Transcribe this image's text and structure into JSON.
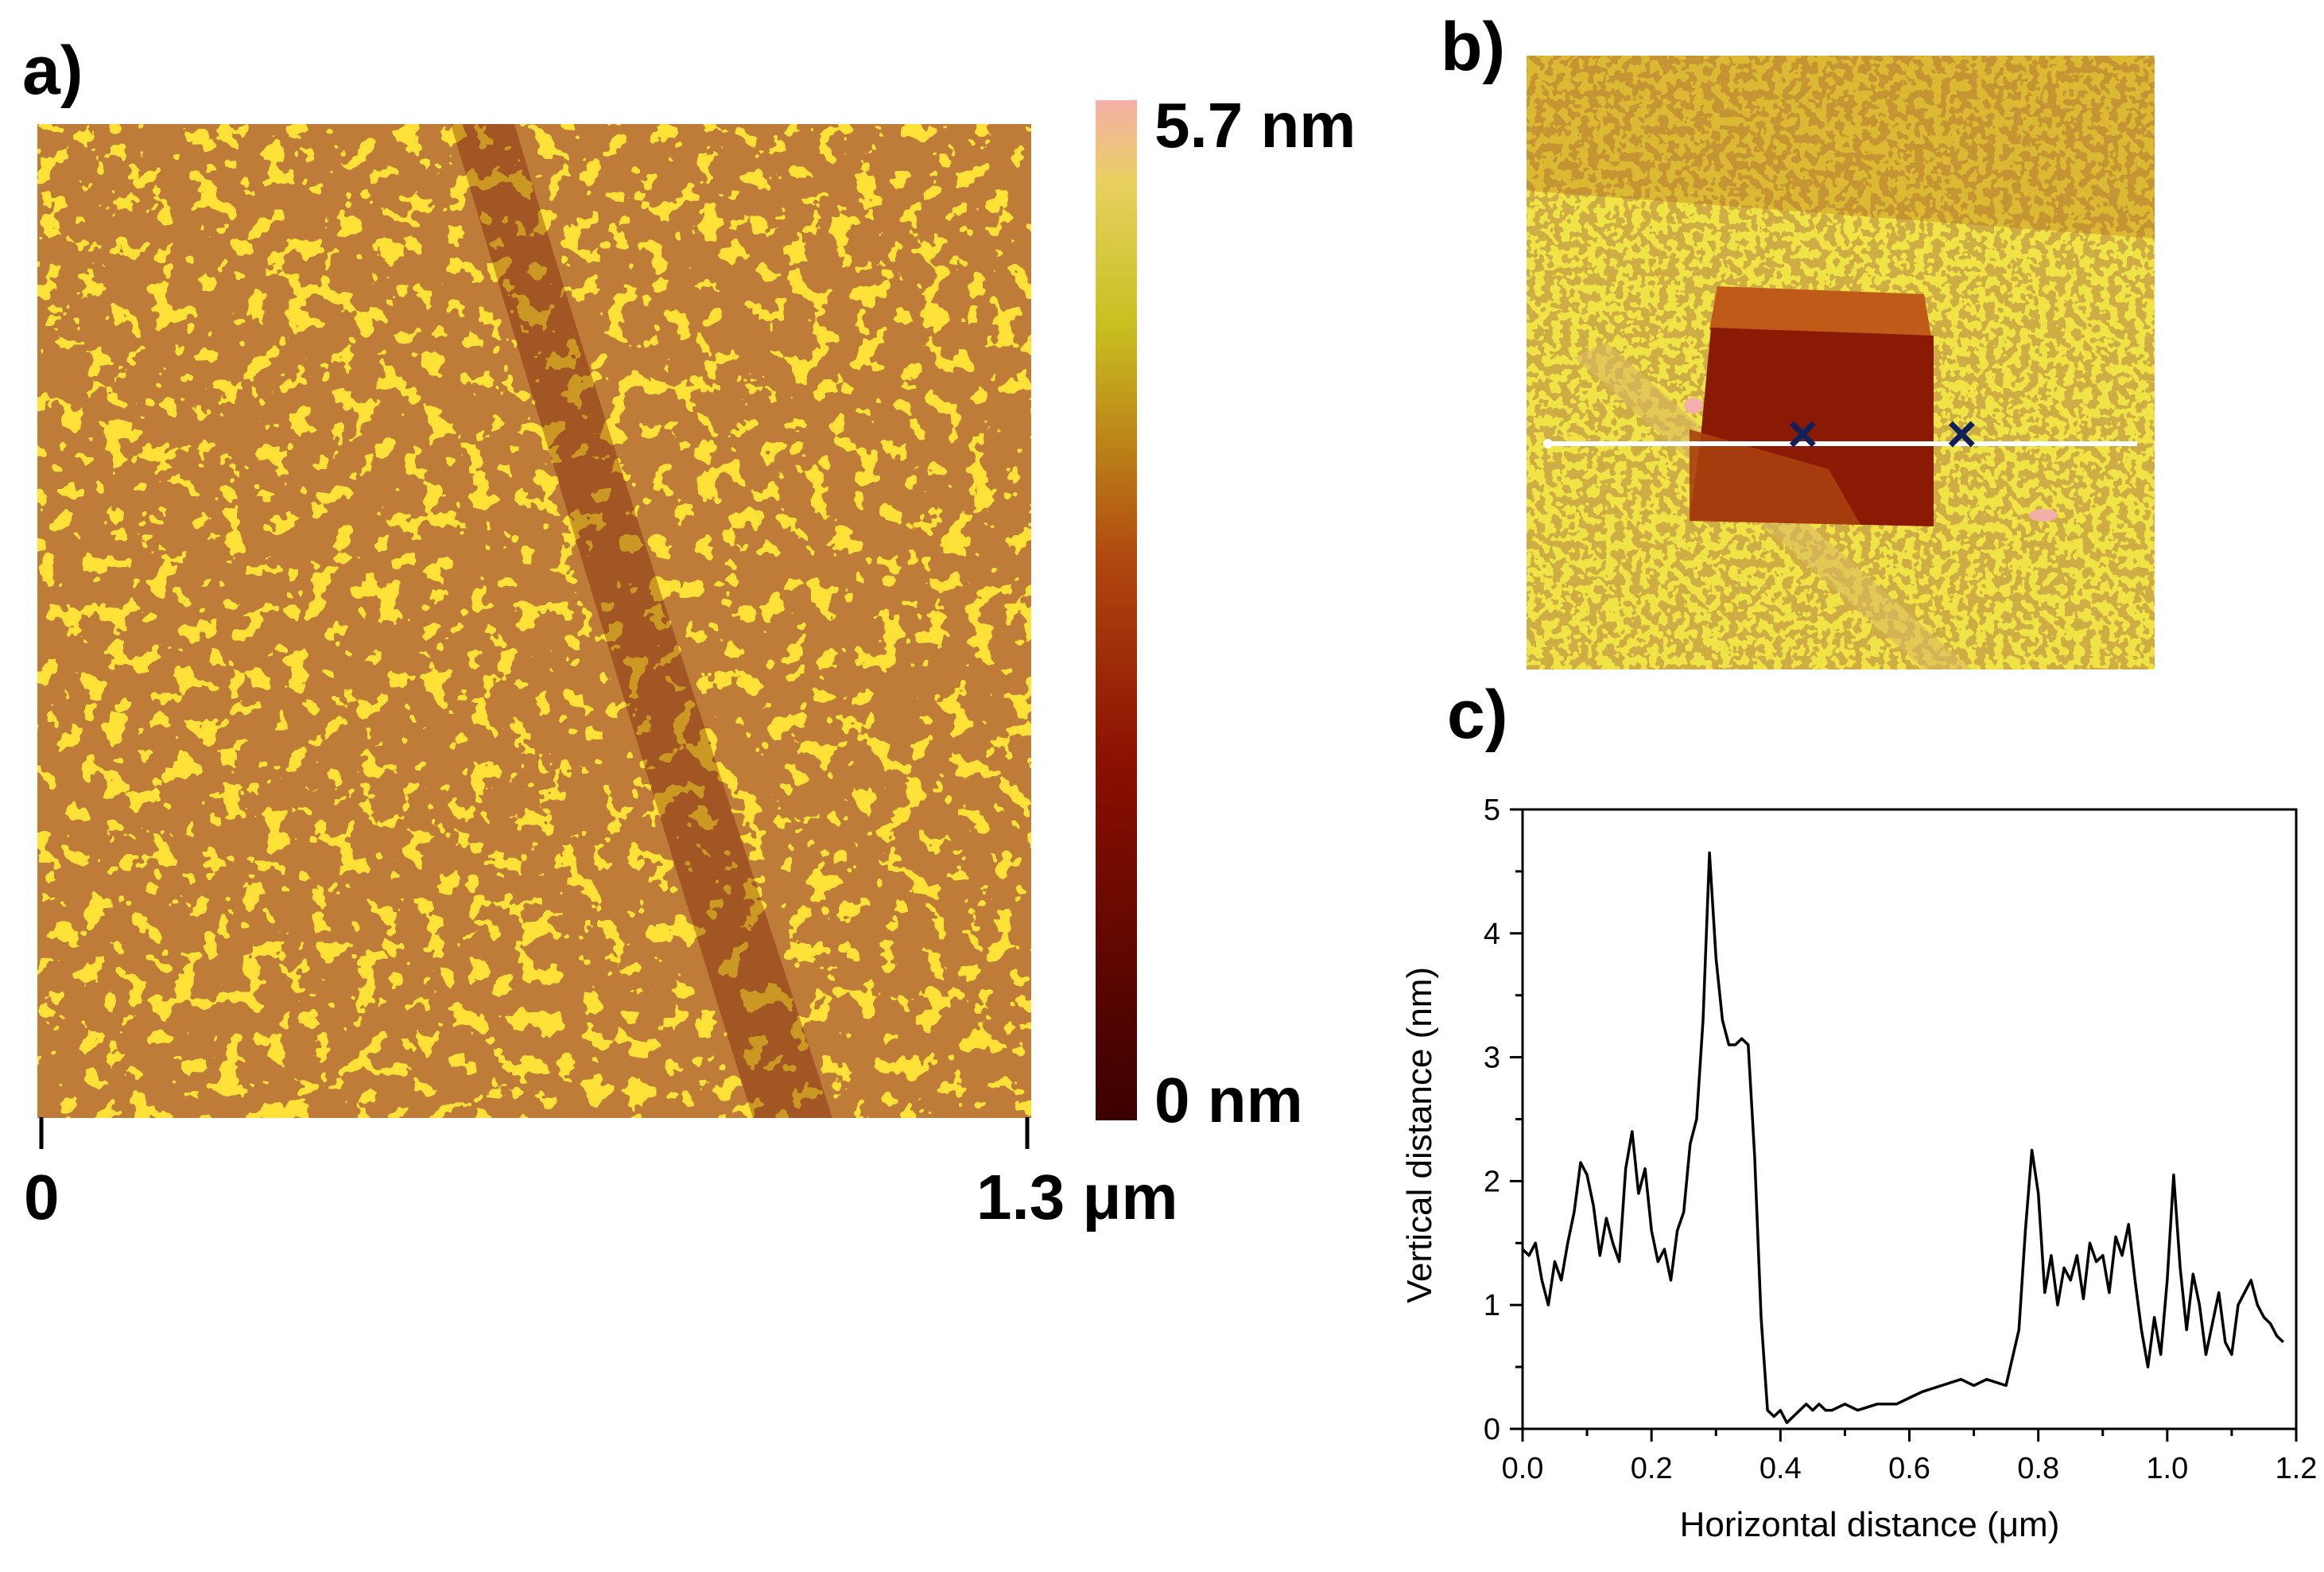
{
  "panels": {
    "a": {
      "label": "a)",
      "colorbar_max": "5.7 nm",
      "colorbar_min": "0 nm",
      "scale_start": "0",
      "scale_end": "1.3 μm"
    },
    "b": {
      "label": "b)",
      "marker_symbol": "×"
    },
    "c": {
      "label": "c)"
    }
  },
  "colors": {
    "afm_dark": "#5a0a00",
    "afm_mid": "#b0400c",
    "afm_light": "#c8c020",
    "afm_highlight": "#f5b0a8",
    "line_profile": "#ffffff",
    "marker": "#10205a",
    "trace": "#000000"
  },
  "chart_data": {
    "type": "line",
    "title": "",
    "xlabel": "Horizontal distance (μm)",
    "ylabel": "Vertical distance (nm)",
    "xlim": [
      0,
      1.2
    ],
    "ylim": [
      0,
      5
    ],
    "xticks": [
      "0.0",
      "0.2",
      "0.4",
      "0.6",
      "0.8",
      "1.0",
      "1.2"
    ],
    "yticks": [
      "0",
      "1",
      "2",
      "3",
      "4",
      "5"
    ],
    "grid": false,
    "legend": "none",
    "series": [
      {
        "x": [
          0.0,
          0.01,
          0.02,
          0.03,
          0.04,
          0.05,
          0.06,
          0.07,
          0.08,
          0.09,
          0.1,
          0.11,
          0.12,
          0.13,
          0.14,
          0.15,
          0.16,
          0.17,
          0.18,
          0.19,
          0.2,
          0.21,
          0.22,
          0.23,
          0.24,
          0.25,
          0.26,
          0.27,
          0.28,
          0.29,
          0.3,
          0.31,
          0.32,
          0.33,
          0.34,
          0.35,
          0.36,
          0.37,
          0.38,
          0.39,
          0.4,
          0.41,
          0.42,
          0.43,
          0.44,
          0.45,
          0.46,
          0.47,
          0.48,
          0.5,
          0.52,
          0.55,
          0.58,
          0.6,
          0.62,
          0.65,
          0.68,
          0.7,
          0.72,
          0.75,
          0.77,
          0.78,
          0.79,
          0.8,
          0.81,
          0.82,
          0.83,
          0.84,
          0.85,
          0.86,
          0.87,
          0.88,
          0.89,
          0.9,
          0.91,
          0.92,
          0.93,
          0.94,
          0.95,
          0.96,
          0.97,
          0.98,
          0.99,
          1.0,
          1.01,
          1.02,
          1.03,
          1.04,
          1.05,
          1.06,
          1.07,
          1.08,
          1.09,
          1.1,
          1.11,
          1.12,
          1.13,
          1.14,
          1.15,
          1.16,
          1.17,
          1.18
        ],
        "values": [
          1.45,
          1.4,
          1.5,
          1.2,
          1.0,
          1.35,
          1.2,
          1.5,
          1.75,
          2.15,
          2.05,
          1.8,
          1.4,
          1.7,
          1.5,
          1.35,
          2.1,
          2.4,
          1.9,
          2.1,
          1.6,
          1.35,
          1.45,
          1.2,
          1.6,
          1.75,
          2.3,
          2.5,
          3.3,
          4.65,
          3.8,
          3.3,
          3.1,
          3.1,
          3.15,
          3.1,
          2.2,
          0.9,
          0.15,
          0.1,
          0.15,
          0.05,
          0.1,
          0.15,
          0.2,
          0.15,
          0.2,
          0.15,
          0.15,
          0.2,
          0.15,
          0.2,
          0.2,
          0.25,
          0.3,
          0.35,
          0.4,
          0.35,
          0.4,
          0.35,
          0.8,
          1.6,
          2.25,
          1.9,
          1.1,
          1.4,
          1.0,
          1.3,
          1.2,
          1.4,
          1.05,
          1.5,
          1.35,
          1.4,
          1.1,
          1.55,
          1.4,
          1.65,
          1.2,
          0.8,
          0.5,
          0.9,
          0.6,
          1.2,
          2.05,
          1.3,
          0.8,
          1.25,
          1.0,
          0.6,
          0.85,
          1.1,
          0.7,
          0.6,
          1.0,
          1.1,
          1.2,
          1.0,
          0.9,
          0.85,
          0.75,
          0.7
        ]
      }
    ]
  }
}
